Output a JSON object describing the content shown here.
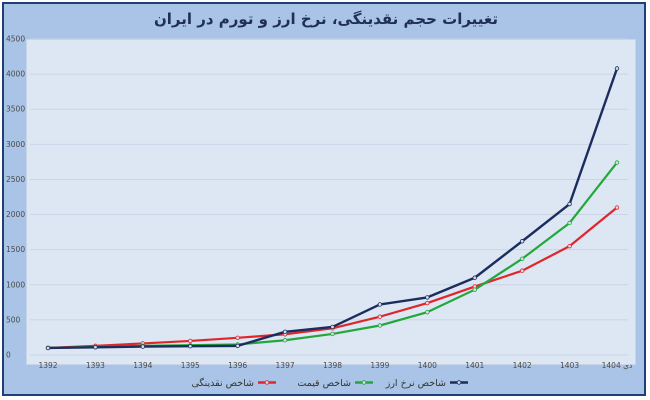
{
  "chart_data": {
    "type": "line",
    "title": "تغییرات حجم نقدینگی، نرخ ارز و تورم در ایران",
    "categories": [
      "1392",
      "1393",
      "1394",
      "1395",
      "1396",
      "1397",
      "1398",
      "1399",
      "1400",
      "1401",
      "1402",
      "1403",
      "دی 1404"
    ],
    "ylim": [
      0,
      4500
    ],
    "yticks": [
      "0",
      "500",
      "1000",
      "1500",
      "2000",
      "2500",
      "3000",
      "3500",
      "4000",
      "4500"
    ],
    "grid": true,
    "legend_position": "bottom",
    "series": [
      {
        "name": "شاخص نقدینگی",
        "color": "#e0262b",
        "values": [
          100,
          130,
          165,
          200,
          245,
          295,
          380,
          545,
          740,
          975,
          1200,
          1550,
          2100
        ]
      },
      {
        "name": "شاخص قیمت",
        "color": "#22a83a",
        "values": [
          100,
          115,
          130,
          140,
          150,
          210,
          300,
          420,
          610,
          930,
          1370,
          1880,
          2740
        ]
      },
      {
        "name": "شاخص نرخ ارز",
        "color": "#1b2d5e",
        "values": [
          100,
          110,
          120,
          125,
          130,
          330,
          400,
          720,
          820,
          1100,
          1620,
          2150,
          4080
        ]
      }
    ]
  }
}
